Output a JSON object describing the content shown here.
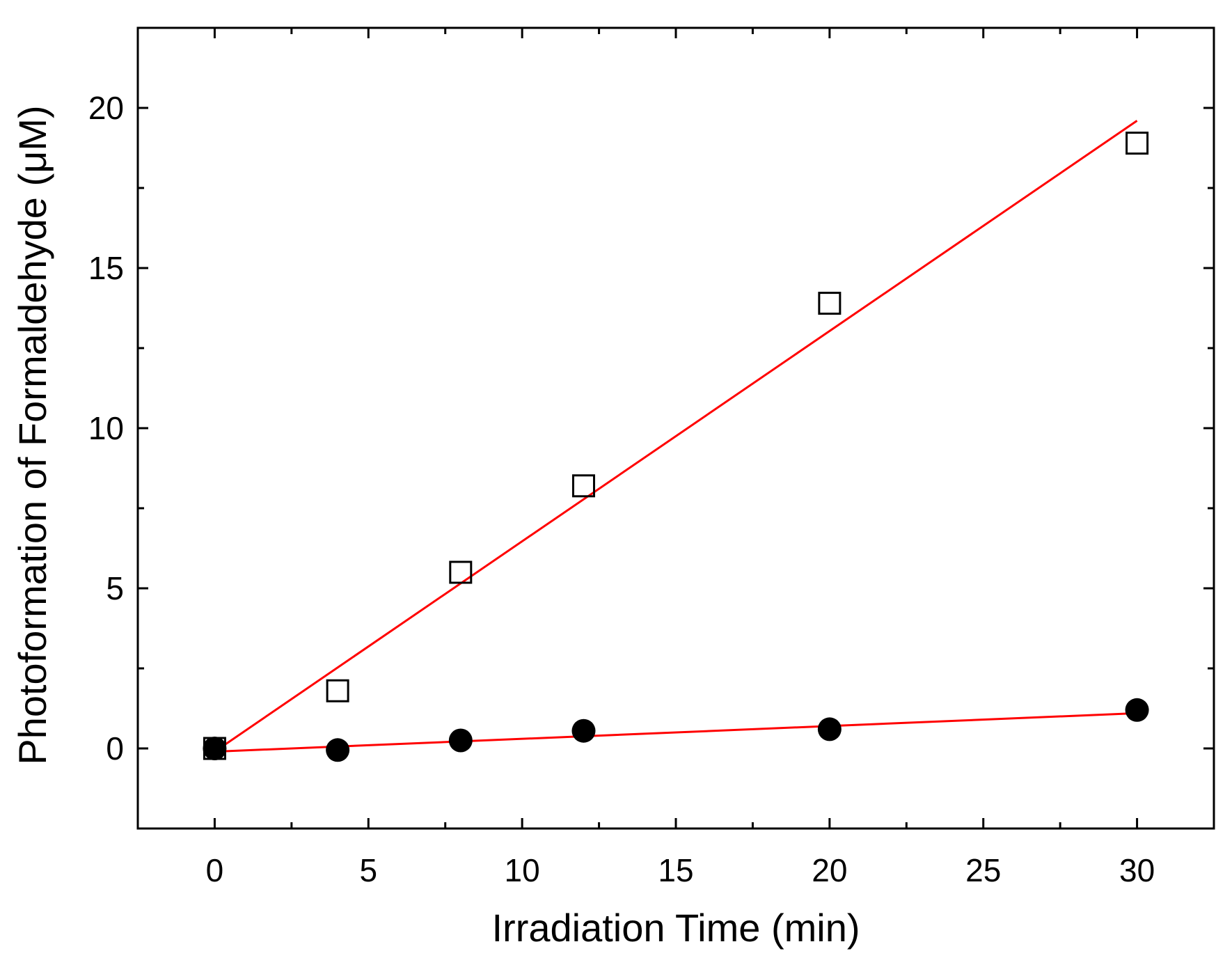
{
  "chart_data": {
    "type": "scatter",
    "xlabel": "Irradiation Time (min)",
    "ylabel": "Photoformation of Formaldehyde (μM)",
    "xlim": [
      -2.5,
      32.5
    ],
    "ylim": [
      -2.5,
      22.5
    ],
    "xticks": [
      0,
      5,
      10,
      15,
      20,
      25,
      30
    ],
    "yticks": [
      0,
      5,
      10,
      15,
      20
    ],
    "xminor_ticks": [
      2.5,
      7.5,
      12.5,
      17.5,
      22.5,
      27.5
    ],
    "yminor_ticks": [
      -2.5,
      2.5,
      7.5,
      12.5,
      17.5,
      22.5
    ],
    "grid": false,
    "series": [
      {
        "marker": "open-square",
        "color": "#000000",
        "x": [
          0,
          4,
          8,
          12,
          20,
          30
        ],
        "y": [
          0.0,
          1.8,
          5.5,
          8.2,
          13.9,
          18.9
        ],
        "fit_line": {
          "color": "#ff0000",
          "x": [
            0,
            30
          ],
          "y": [
            -0.1,
            19.6
          ]
        }
      },
      {
        "marker": "filled-circle",
        "color": "#000000",
        "x": [
          0,
          4,
          8,
          12,
          20,
          30
        ],
        "y": [
          0.0,
          -0.05,
          0.25,
          0.55,
          0.6,
          1.2
        ],
        "fit_line": {
          "color": "#ff0000",
          "x": [
            0,
            30
          ],
          "y": [
            -0.1,
            1.1
          ]
        }
      }
    ]
  }
}
